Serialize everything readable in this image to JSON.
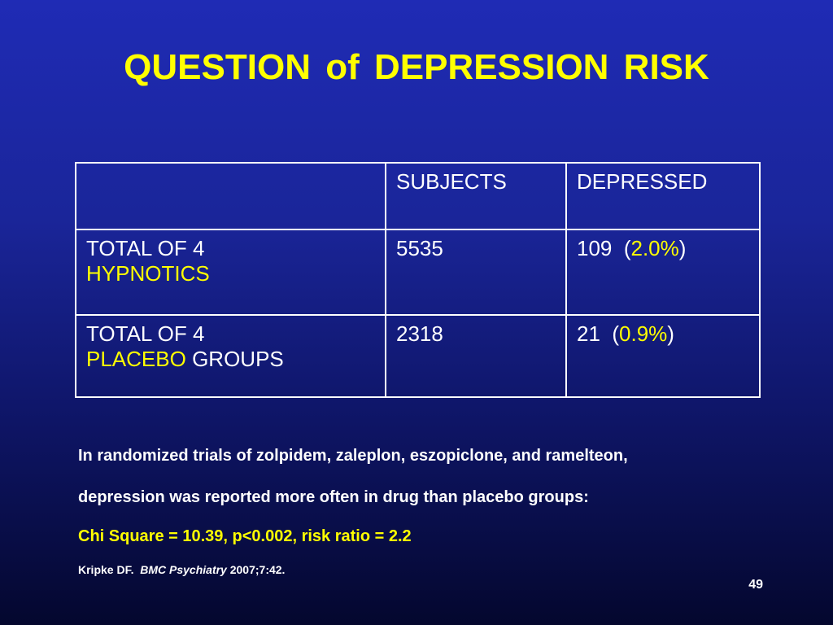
{
  "slide": {
    "title": "QUESTION  of  DEPRESSION  RISK",
    "page_number": "49"
  },
  "table": {
    "headers": [
      "",
      "SUBJECTS",
      "DEPRESSED"
    ],
    "rows": [
      {
        "label_line1": "TOTAL OF 4",
        "label_line2": "HYPNOTICS",
        "subjects": "5535",
        "depressed_count": "109",
        "depressed_pct": "2.0%"
      },
      {
        "label_line1": "TOTAL OF 4",
        "label_line2_highlight": "PLACEBO",
        "label_line2_rest": "GROUPS",
        "subjects": "2318",
        "depressed_count": "21",
        "depressed_pct": "0.9%"
      }
    ]
  },
  "notes": {
    "line1": "In randomized trials of zolpidem, zaleplon, eszopiclone, and ramelteon,",
    "line2": "depression was reported more often in drug than placebo groups:",
    "line3": "Chi Square = 10.39, p<0.002, risk ratio = 2.2"
  },
  "citation": {
    "author": "Kripke DF.",
    "journal": "BMC Psychiatry",
    "details": "2007;7:42."
  },
  "colors": {
    "highlight": "#ffff00",
    "text": "#ffffff",
    "background_top": "#1f2bb5",
    "background_bottom": "#04072e"
  }
}
